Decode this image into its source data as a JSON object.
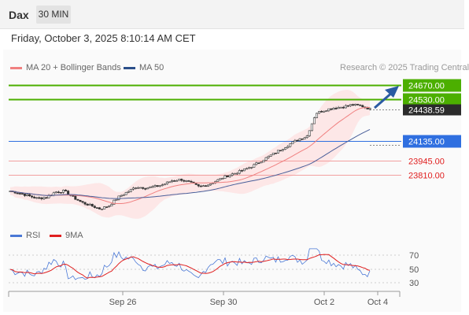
{
  "header": {
    "instrument": "Dax",
    "timeframe": "30 MIN"
  },
  "timestamp": "Friday, October 3, 2025 8:10:14 AM CET",
  "legend": {
    "ma": "MA 20 + Bollinger Bands",
    "ma50": "MA 50",
    "credit": "Research © 2025 Trading Central"
  },
  "rsi_legend": {
    "rsi": "RSI",
    "ma": "9MA"
  },
  "colors": {
    "ma20": "#f08080",
    "ma50": "#2b4f8a",
    "resistance": "#4caf00",
    "support": "#f2a0a0",
    "pivot": "#2f6fe0",
    "rsi": "#4a78d6",
    "rsi_ma": "#e02020",
    "arrow": "#2a5ba3"
  },
  "levels": [
    {
      "value": 24670.0,
      "label": "24670.00",
      "kind": "resistance"
    },
    {
      "value": 24530.0,
      "label": "24530.00",
      "kind": "resistance"
    },
    {
      "value": 24438.59,
      "label": "24438.59",
      "kind": "last"
    },
    {
      "value": 24135.0,
      "label": "24135.00",
      "kind": "pivot"
    },
    {
      "value": 23945.0,
      "label": "23945.00",
      "kind": "support"
    },
    {
      "value": 23810.0,
      "label": "23810.00",
      "kind": "support"
    }
  ],
  "x_axis": [
    "Sep 26",
    "Sep 30",
    "Oct 2",
    "Oct 4"
  ],
  "rsi_axis": [
    "70",
    "50",
    "30"
  ],
  "chart_data": {
    "type": "candlestick",
    "price_close_path": [
      23660,
      23640,
      23615,
      23590,
      23600,
      23650,
      23660,
      23600,
      23550,
      23520,
      23490,
      23520,
      23600,
      23650,
      23700,
      23690,
      23700,
      23720,
      23760,
      23770,
      23740,
      23700,
      23720,
      23760,
      23800,
      23830,
      23860,
      23900,
      23950,
      24000,
      24050,
      24100,
      24150,
      24180,
      24400,
      24430,
      24450,
      24460,
      24480,
      24470,
      24440
    ],
    "levels": [
      24670.0,
      24530.0,
      24438.59,
      24135.0,
      23945.0,
      23810.0
    ],
    "rsi_levels": [
      70,
      50,
      30
    ]
  }
}
